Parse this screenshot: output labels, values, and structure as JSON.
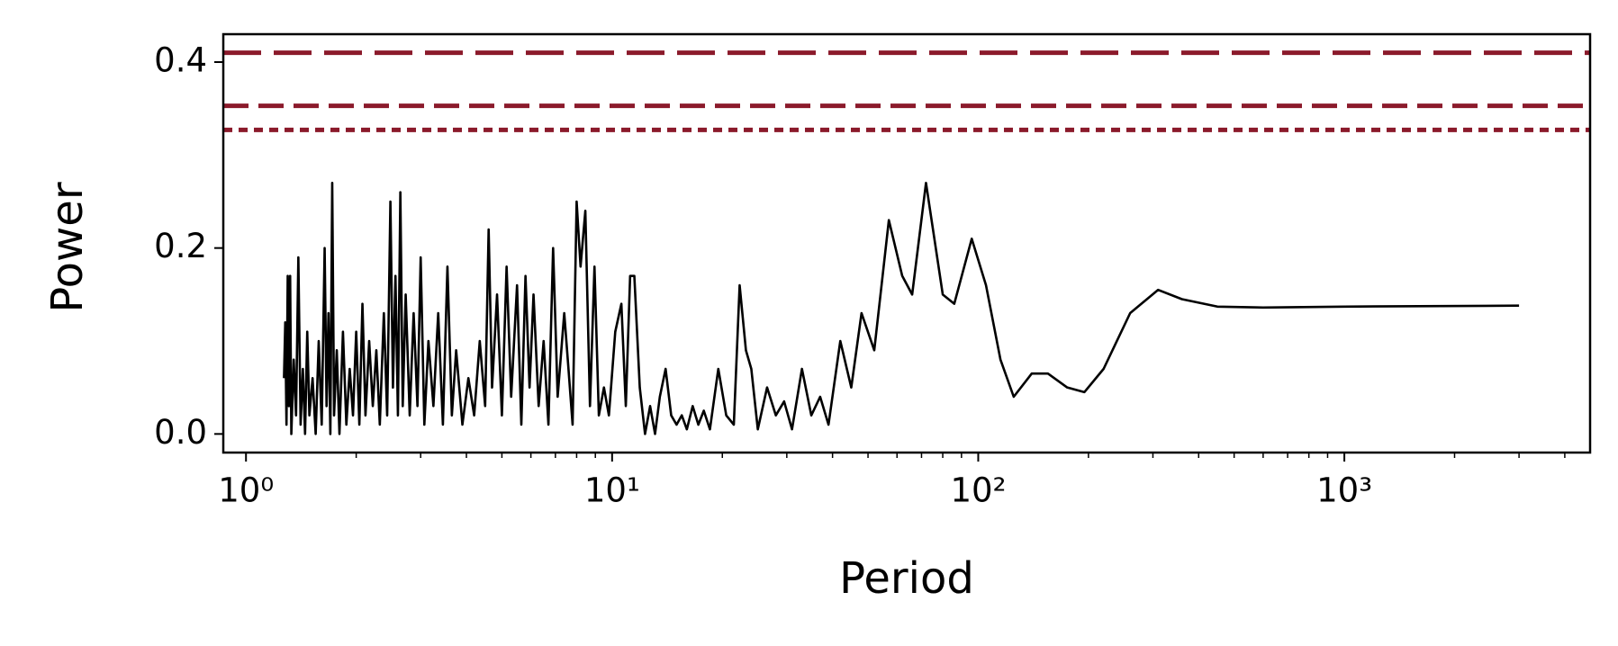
{
  "chart_data": {
    "type": "line",
    "xlabel": "Period",
    "ylabel": "Power",
    "xscale": "log",
    "xlim": [
      0.867,
      4690
    ],
    "ylim": [
      -0.02,
      0.43
    ],
    "xticks": [
      {
        "value": 1,
        "label": "10⁰"
      },
      {
        "value": 10,
        "label": "10¹"
      },
      {
        "value": 100,
        "label": "10²"
      },
      {
        "value": 1000,
        "label": "10³"
      }
    ],
    "xminorticks": [
      2,
      3,
      4,
      5,
      6,
      7,
      8,
      9,
      20,
      30,
      40,
      50,
      60,
      70,
      80,
      90,
      200,
      300,
      400,
      500,
      600,
      700,
      800,
      900,
      2000,
      3000,
      4000
    ],
    "yticks": [
      {
        "value": 0,
        "label": "0.0"
      },
      0.2,
      0.4
    ],
    "hlines": [
      {
        "value": 0.41,
        "color": "#8b1a2b",
        "style": "long-dash"
      },
      {
        "value": 0.353,
        "color": "#8b1a2b",
        "style": "dash"
      },
      {
        "value": 0.327,
        "color": "#8b1a2b",
        "style": "dot"
      }
    ],
    "series": [
      {
        "color": "#000000",
        "x": [
          1.27,
          1.28,
          1.29,
          1.3,
          1.31,
          1.32,
          1.33,
          1.35,
          1.37,
          1.39,
          1.41,
          1.43,
          1.45,
          1.47,
          1.49,
          1.52,
          1.55,
          1.58,
          1.61,
          1.64,
          1.66,
          1.68,
          1.7,
          1.72,
          1.74,
          1.77,
          1.8,
          1.84,
          1.88,
          1.92,
          1.96,
          2.0,
          2.04,
          2.08,
          2.12,
          2.17,
          2.22,
          2.27,
          2.32,
          2.38,
          2.43,
          2.48,
          2.52,
          2.56,
          2.6,
          2.64,
          2.68,
          2.73,
          2.8,
          2.87,
          2.94,
          3.0,
          3.07,
          3.15,
          3.25,
          3.35,
          3.45,
          3.55,
          3.65,
          3.75,
          3.9,
          4.05,
          4.2,
          4.35,
          4.5,
          4.6,
          4.7,
          4.85,
          5.0,
          5.15,
          5.3,
          5.5,
          5.65,
          5.8,
          5.95,
          6.1,
          6.3,
          6.5,
          6.7,
          6.9,
          7.1,
          7.4,
          7.6,
          7.8,
          8.0,
          8.2,
          8.45,
          8.7,
          8.95,
          9.2,
          9.5,
          9.8,
          10.2,
          10.6,
          10.9,
          11.2,
          11.5,
          11.9,
          12.3,
          12.7,
          13.1,
          13.5,
          14.0,
          14.5,
          15.0,
          15.5,
          16.0,
          16.6,
          17.2,
          17.8,
          18.5,
          19.5,
          20.5,
          21.5,
          22.3,
          23.2,
          24.0,
          25.0,
          26.5,
          28.0,
          29.5,
          31.0,
          33.0,
          35.0,
          37.0,
          39.0,
          42.0,
          45.0,
          48.0,
          52.0,
          57.0,
          62.0,
          66.0,
          72.0,
          80.0,
          86.0,
          96.0,
          105,
          115,
          125,
          140,
          155,
          175,
          195,
          220,
          260,
          310,
          360,
          450,
          600,
          1000,
          3000
        ],
        "values": [
          0.06,
          0.12,
          0.01,
          0.17,
          0.03,
          0.17,
          0.0,
          0.08,
          0.02,
          0.19,
          0.01,
          0.07,
          0.0,
          0.11,
          0.02,
          0.06,
          0.0,
          0.1,
          0.01,
          0.2,
          0.03,
          0.13,
          0.0,
          0.27,
          0.02,
          0.09,
          0.0,
          0.11,
          0.01,
          0.07,
          0.02,
          0.11,
          0.01,
          0.14,
          0.02,
          0.1,
          0.03,
          0.09,
          0.01,
          0.13,
          0.02,
          0.25,
          0.05,
          0.17,
          0.02,
          0.26,
          0.03,
          0.15,
          0.02,
          0.13,
          0.03,
          0.19,
          0.01,
          0.1,
          0.03,
          0.13,
          0.01,
          0.18,
          0.02,
          0.09,
          0.01,
          0.06,
          0.02,
          0.1,
          0.03,
          0.22,
          0.05,
          0.15,
          0.02,
          0.18,
          0.04,
          0.16,
          0.01,
          0.17,
          0.05,
          0.15,
          0.03,
          0.1,
          0.01,
          0.2,
          0.04,
          0.13,
          0.07,
          0.01,
          0.25,
          0.18,
          0.24,
          0.03,
          0.18,
          0.02,
          0.05,
          0.02,
          0.11,
          0.14,
          0.03,
          0.17,
          0.17,
          0.05,
          0.0,
          0.03,
          0.0,
          0.04,
          0.07,
          0.02,
          0.01,
          0.02,
          0.005,
          0.03,
          0.01,
          0.025,
          0.005,
          0.07,
          0.02,
          0.01,
          0.16,
          0.09,
          0.07,
          0.005,
          0.05,
          0.02,
          0.035,
          0.005,
          0.07,
          0.02,
          0.04,
          0.01,
          0.1,
          0.05,
          0.13,
          0.09,
          0.23,
          0.17,
          0.15,
          0.27,
          0.15,
          0.14,
          0.21,
          0.16,
          0.08,
          0.04,
          0.065,
          0.065,
          0.05,
          0.045,
          0.07,
          0.13,
          0.155,
          0.145,
          0.137,
          0.136,
          0.137,
          0.138
        ]
      }
    ]
  }
}
